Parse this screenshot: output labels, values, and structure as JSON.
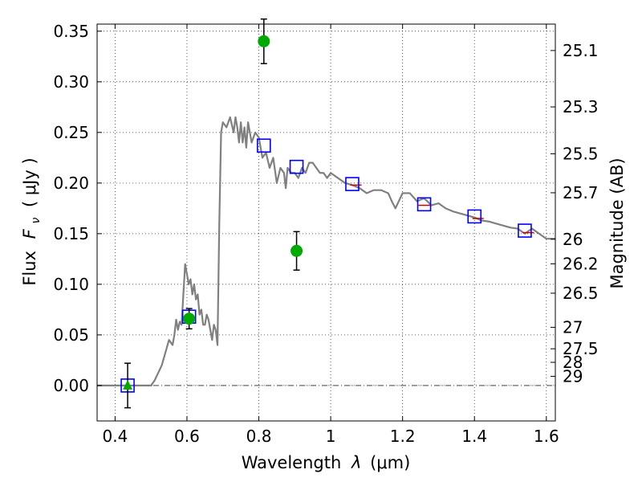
{
  "chart_data": {
    "type": "scatter",
    "xlabel_prefix": "Wavelength",
    "xlabel_symbol": "λ",
    "xlabel_units": "(μm)",
    "ylabel_prefix": "Flux",
    "ylabel_symbol": "F",
    "ylabel_sub": "ν",
    "ylabel_units": "( μJy )",
    "y2label": "Magnitude (AB)",
    "xlim": [
      0.35,
      1.625
    ],
    "ylim": [
      -0.035,
      0.357
    ],
    "xticks": [
      0.4,
      0.6,
      0.8,
      1.0,
      1.2,
      1.4,
      1.6
    ],
    "xtick_labels": [
      "0.4",
      "0.6",
      "0.8",
      "1",
      "1.2",
      "1.4",
      "1.6"
    ],
    "yticks": [
      0.0,
      0.05,
      0.1,
      0.15,
      0.2,
      0.25,
      0.3,
      0.35
    ],
    "ytick_labels": [
      "0.00",
      "0.05",
      "0.10",
      "0.15",
      "0.20",
      "0.25",
      "0.30",
      "0.35"
    ],
    "magnitude_ticks": [
      {
        "label": "25.1",
        "flux": 0.3309
      },
      {
        "label": "25.3",
        "flux": 0.2752
      },
      {
        "label": "25.5",
        "flux": 0.2289
      },
      {
        "label": "25.7",
        "flux": 0.1904
      },
      {
        "label": "26",
        "flux": 0.1445
      },
      {
        "label": "26.2",
        "flux": 0.1202
      },
      {
        "label": "26.5",
        "flux": 0.0912
      },
      {
        "label": "27",
        "flux": 0.0575
      },
      {
        "label": "27.5",
        "flux": 0.0363
      },
      {
        "label": "28",
        "flux": 0.0229
      },
      {
        "label": "29",
        "flux": 0.0091
      }
    ],
    "zero_line": 0.0,
    "model_spectrum": {
      "color": "#808080",
      "x": [
        0.35,
        0.5,
        0.51,
        0.53,
        0.55,
        0.56,
        0.565,
        0.57,
        0.575,
        0.58,
        0.585,
        0.59,
        0.595,
        0.6,
        0.605,
        0.61,
        0.615,
        0.62,
        0.625,
        0.63,
        0.635,
        0.64,
        0.645,
        0.65,
        0.655,
        0.66,
        0.665,
        0.67,
        0.675,
        0.68,
        0.685,
        0.69,
        0.695,
        0.7,
        0.71,
        0.72,
        0.73,
        0.735,
        0.74,
        0.745,
        0.75,
        0.755,
        0.76,
        0.765,
        0.77,
        0.78,
        0.79,
        0.8,
        0.81,
        0.82,
        0.83,
        0.84,
        0.85,
        0.86,
        0.87,
        0.875,
        0.88,
        0.89,
        0.9,
        0.91,
        0.92,
        0.93,
        0.94,
        0.95,
        0.96,
        0.97,
        0.98,
        0.99,
        1.0,
        1.02,
        1.04,
        1.06,
        1.08,
        1.1,
        1.12,
        1.14,
        1.16,
        1.17,
        1.18,
        1.2,
        1.22,
        1.24,
        1.26,
        1.28,
        1.3,
        1.32,
        1.34,
        1.36,
        1.38,
        1.4,
        1.42,
        1.44,
        1.46,
        1.48,
        1.5,
        1.52,
        1.54,
        1.56,
        1.58,
        1.6,
        1.625
      ],
      "y": [
        0.0,
        0.0,
        0.005,
        0.02,
        0.045,
        0.04,
        0.05,
        0.065,
        0.055,
        0.063,
        0.06,
        0.09,
        0.12,
        0.11,
        0.1,
        0.105,
        0.09,
        0.1,
        0.085,
        0.09,
        0.07,
        0.075,
        0.06,
        0.06,
        0.07,
        0.065,
        0.055,
        0.045,
        0.06,
        0.055,
        0.04,
        0.16,
        0.25,
        0.26,
        0.255,
        0.265,
        0.25,
        0.265,
        0.255,
        0.24,
        0.26,
        0.24,
        0.255,
        0.235,
        0.26,
        0.24,
        0.25,
        0.245,
        0.225,
        0.23,
        0.215,
        0.225,
        0.2,
        0.215,
        0.21,
        0.195,
        0.215,
        0.21,
        0.21,
        0.205,
        0.215,
        0.21,
        0.22,
        0.22,
        0.215,
        0.21,
        0.21,
        0.205,
        0.21,
        0.205,
        0.2,
        0.198,
        0.195,
        0.19,
        0.193,
        0.193,
        0.19,
        0.182,
        0.175,
        0.19,
        0.19,
        0.182,
        0.185,
        0.178,
        0.18,
        0.175,
        0.172,
        0.17,
        0.168,
        0.166,
        0.163,
        0.162,
        0.16,
        0.158,
        0.156,
        0.155,
        0.15,
        0.155,
        0.15,
        0.145,
        0.145
      ]
    },
    "model_photometry": {
      "marker": "square",
      "color": "#0000ff",
      "x": [
        0.435,
        0.606,
        0.814,
        0.905,
        1.06,
        1.26,
        1.4,
        1.54
      ],
      "y": [
        0.0,
        0.068,
        0.237,
        0.216,
        0.199,
        0.179,
        0.167,
        0.153
      ]
    },
    "filter_ticks": {
      "color": "#cc0000",
      "x": [
        1.07,
        1.26,
        1.41,
        1.55
      ],
      "y": [
        0.198,
        0.178,
        0.165,
        0.151
      ]
    },
    "observed": {
      "color": "#00aa00",
      "points": [
        {
          "x": 0.435,
          "y": 0.0,
          "err": 0.022,
          "marker": "triangle"
        },
        {
          "x": 0.606,
          "y": 0.066,
          "err": 0.01,
          "marker": "circle"
        },
        {
          "x": 0.814,
          "y": 0.34,
          "err": 0.022,
          "marker": "circle"
        },
        {
          "x": 0.905,
          "y": 0.133,
          "err": 0.019,
          "marker": "circle"
        }
      ]
    }
  }
}
